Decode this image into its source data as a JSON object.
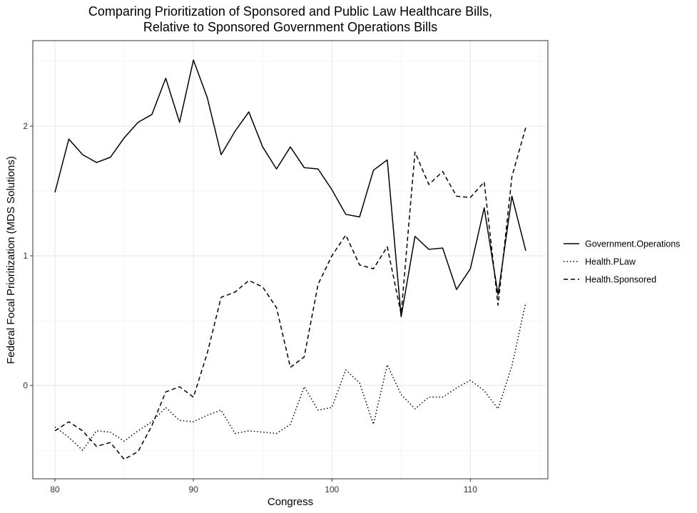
{
  "chart_data": {
    "type": "line",
    "title": "Comparing Prioritization of Sponsored and Public Law Healthcare Bills,",
    "subtitle": "Relative to Sponsored Government Operations Bills",
    "xlabel": "Congress",
    "ylabel": "Federal Focal Prioritization (MDS Solutions)",
    "xlim": [
      78.4,
      115.6
    ],
    "ylim": [
      -0.72,
      2.66
    ],
    "x_ticks": [
      80,
      90,
      100,
      110
    ],
    "y_ticks": [
      0,
      1,
      2
    ],
    "grid": true,
    "legend_position": "right",
    "x": [
      80,
      81,
      82,
      83,
      84,
      85,
      86,
      87,
      88,
      89,
      90,
      91,
      92,
      93,
      94,
      95,
      96,
      97,
      98,
      99,
      100,
      101,
      102,
      103,
      104,
      105,
      106,
      107,
      108,
      109,
      110,
      111,
      112,
      113,
      114
    ],
    "series": [
      {
        "name": "Government.Operations",
        "dash": "solid",
        "values": [
          1.49,
          1.9,
          1.78,
          1.72,
          1.76,
          1.91,
          2.03,
          2.09,
          2.37,
          2.03,
          2.51,
          2.22,
          1.78,
          1.96,
          2.11,
          1.84,
          1.67,
          1.84,
          1.68,
          1.67,
          1.51,
          1.32,
          1.3,
          1.66,
          1.74,
          0.53,
          1.15,
          1.05,
          1.06,
          0.74,
          0.9,
          1.37,
          0.7,
          1.46,
          1.04
        ]
      },
      {
        "name": "Health.PLaw",
        "dash": "dotted",
        "values": [
          -0.32,
          -0.4,
          -0.5,
          -0.35,
          -0.36,
          -0.43,
          -0.35,
          -0.28,
          -0.17,
          -0.27,
          -0.28,
          -0.23,
          -0.19,
          -0.37,
          -0.35,
          -0.36,
          -0.37,
          -0.3,
          -0.01,
          -0.19,
          -0.17,
          0.12,
          0.02,
          -0.3,
          0.16,
          -0.07,
          -0.18,
          -0.09,
          -0.09,
          -0.02,
          0.04,
          -0.04,
          -0.18,
          0.15,
          0.64
        ]
      },
      {
        "name": "Health.Sponsored",
        "dash": "dashed",
        "values": [
          -0.35,
          -0.28,
          -0.35,
          -0.47,
          -0.44,
          -0.57,
          -0.51,
          -0.31,
          -0.05,
          -0.01,
          -0.09,
          0.25,
          0.68,
          0.72,
          0.81,
          0.76,
          0.6,
          0.14,
          0.22,
          0.78,
          1.0,
          1.16,
          0.93,
          0.9,
          1.07,
          0.55,
          1.8,
          1.55,
          1.65,
          1.46,
          1.45,
          1.57,
          0.62,
          1.61,
          1.99
        ]
      }
    ]
  }
}
